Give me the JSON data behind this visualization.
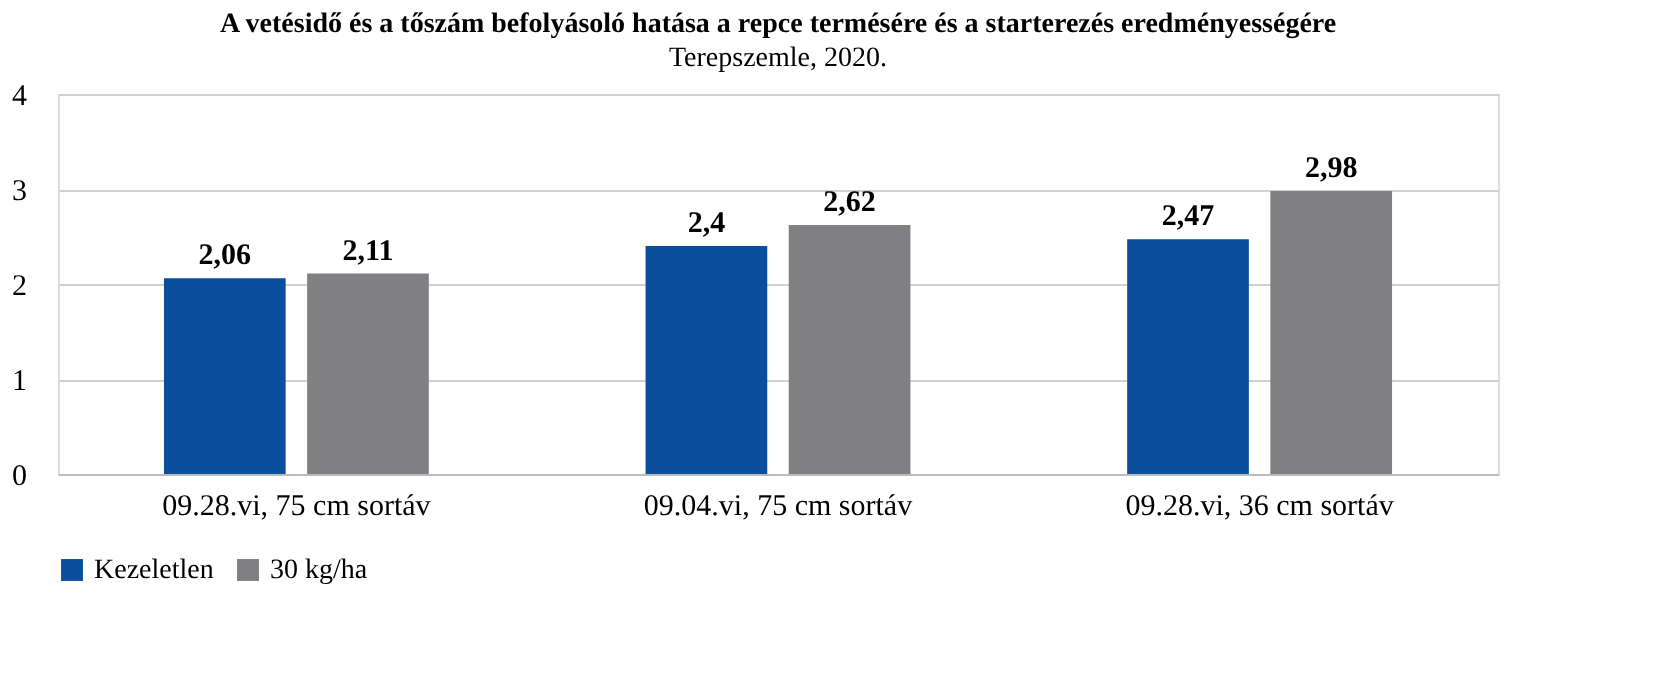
{
  "chart_data": {
    "type": "bar",
    "title": "A vetésidő és a tőszám befolyásoló hatása a repce termésére és a starterezés eredményességére",
    "subtitle": "Terepszemle, 2020.",
    "categories": [
      "09.28.vi, 75 cm sortáv",
      "09.04.vi, 75 cm sortáv",
      "09.28.vi, 36 cm sortáv"
    ],
    "series": [
      {
        "name": "Kezeletlen",
        "color": "#0b4f9c",
        "values": [
          2.06,
          2.4,
          2.47
        ],
        "value_labels": [
          "2,06",
          "2,4",
          "2,47"
        ]
      },
      {
        "name": "30 kg/ha",
        "color": "#808083",
        "values": [
          2.11,
          2.62,
          2.98
        ],
        "value_labels": [
          "2,11",
          "2,62",
          "2,98"
        ]
      }
    ],
    "ylim": [
      0,
      4
    ],
    "yticks": [
      0,
      1,
      2,
      3,
      4
    ],
    "grid": "y",
    "legend": "bottom"
  }
}
